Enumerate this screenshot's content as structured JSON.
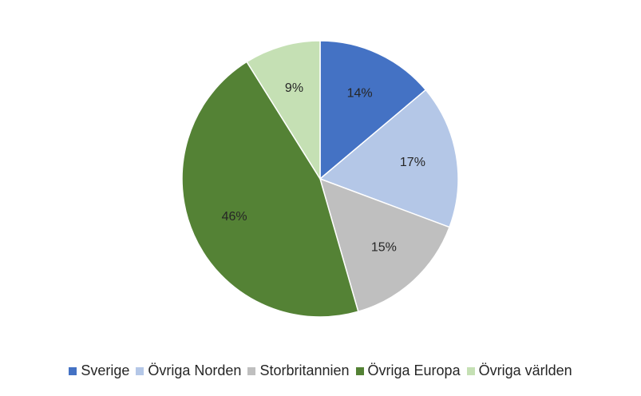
{
  "chart_data": {
    "type": "pie",
    "categories": [
      "Sverige",
      "Övriga Norden",
      "Storbritannien",
      "Övriga Europa",
      "Övriga världen"
    ],
    "values": [
      14,
      17,
      15,
      46,
      9
    ],
    "labels": [
      "14%",
      "17%",
      "15%",
      "46%",
      "9%"
    ],
    "colors": [
      "#4472C4",
      "#B4C7E7",
      "#BFBFBF",
      "#548235",
      "#C5E0B4"
    ],
    "legend_position": "bottom",
    "start_angle": "12 o'clock, clockwise"
  }
}
